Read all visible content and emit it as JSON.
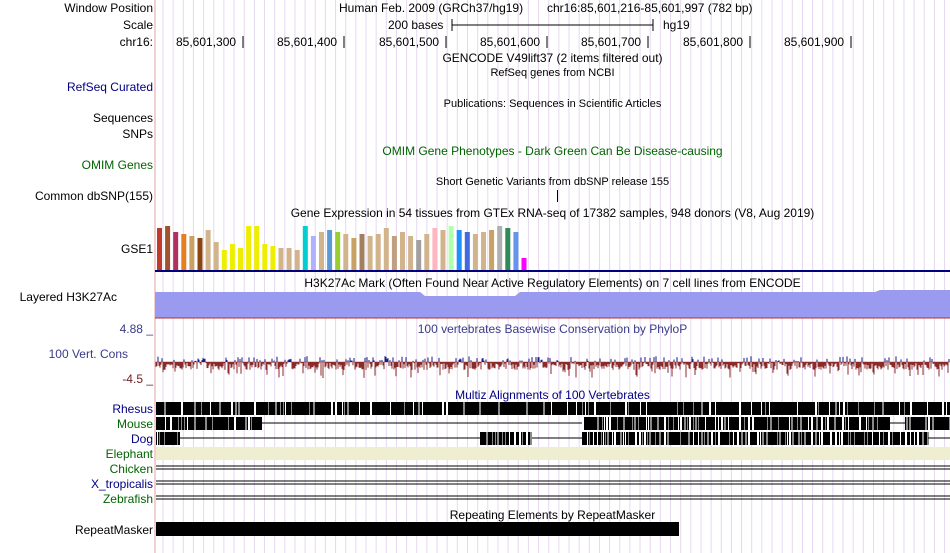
{
  "header": {
    "window_position_label": "Window Position",
    "scale_label": "Scale",
    "chrom_label": "chr16:",
    "assembly": "Human Feb. 2009 (GRCh37/hg19)",
    "position": "chr16:85,601,216-85,601,997 (782 bp)",
    "scale_text": "200 bases",
    "db": "hg19",
    "ticks": [
      "85,601,300",
      "85,601,400",
      "85,601,500",
      "85,601,600",
      "85,601,700",
      "85,601,800",
      "85,601,900"
    ]
  },
  "tracks": {
    "gencode_title": "GENCODE V49lift37 (2 items filtered out)",
    "refseq_label": "RefSeq Curated",
    "refseq_title": "RefSeq genes from NCBI",
    "publications_title": "Publications: Sequences in Scientific Articles",
    "sequences_label": "Sequences",
    "snps_label": "SNPs",
    "omim_label": "OMIM Genes",
    "omim_title": "OMIM Gene Phenotypes - Dark Green Can Be Disease-causing",
    "dbsnp_title": "Short Genetic Variants from dbSNP release 155",
    "dbsnp_label": "Common dbSNP(155)",
    "gtex_title": "Gene Expression in 54 tissues from GTEx RNA-seq of 17382 samples, 948 donors (V8, Aug 2019)",
    "gse1_label": "GSE1",
    "h3k27ac_label": "Layered H3K27Ac",
    "h3k27ac_title": "H3K27Ac Mark (Often Found Near Active Regulatory Elements) on 7 cell lines from ENCODE",
    "phylop_max": "4.88 _",
    "phylop_label": "100 Vert. Cons",
    "phylop_min": "-4.5 _",
    "phylop_title": "100 vertebrates Basewise Conservation by PhyloP",
    "multiz_title": "Multiz Alignments of 100 Vertebrates",
    "species": [
      "Rhesus",
      "Mouse",
      "Dog",
      "Elephant",
      "Chicken",
      "X_tropicalis",
      "Zebrafish"
    ],
    "repeat_title": "Repeating Elements by RepeatMasker",
    "repeat_label": "RepeatMasker"
  },
  "colors": {
    "gtex_bars": [
      "#c0392b",
      "#a0522d",
      "#b03060",
      "#e67e22",
      "#c8a165",
      "#8b4513",
      "#d2b48c",
      "#d2b48c",
      "#eeee00",
      "#eeee00",
      "#eeee00",
      "#eeee00",
      "#eeee00",
      "#eeee00",
      "#eeee00",
      "#d2b48c",
      "#d2b48c",
      "#d2b48c",
      "#00ced1",
      "#b0b0ff",
      "#d2b48c",
      "#5b9bd5",
      "#9acd32",
      "#d2b48c",
      "#c8a165",
      "#a08060",
      "#d2b48c",
      "#d2b48c",
      "#d2b48c",
      "#c0a080",
      "#d2b48c",
      "#d2b48c",
      "#a0a0a0",
      "#d2b48c",
      "#ffb6c1",
      "#d2b48c",
      "#b0ffb0",
      "#1e90ff",
      "#4169e1",
      "#d2b48c",
      "#d2b48c",
      "#c8a165",
      "#b0b0b0",
      "#2e8b57",
      "#6495ed",
      "#ff00ff"
    ],
    "h3k27ac": "#9a9af0",
    "phylop_pos": "#1a1a8a",
    "phylop_neg": "#8b2a2a",
    "elephant": "#f0eed0"
  }
}
